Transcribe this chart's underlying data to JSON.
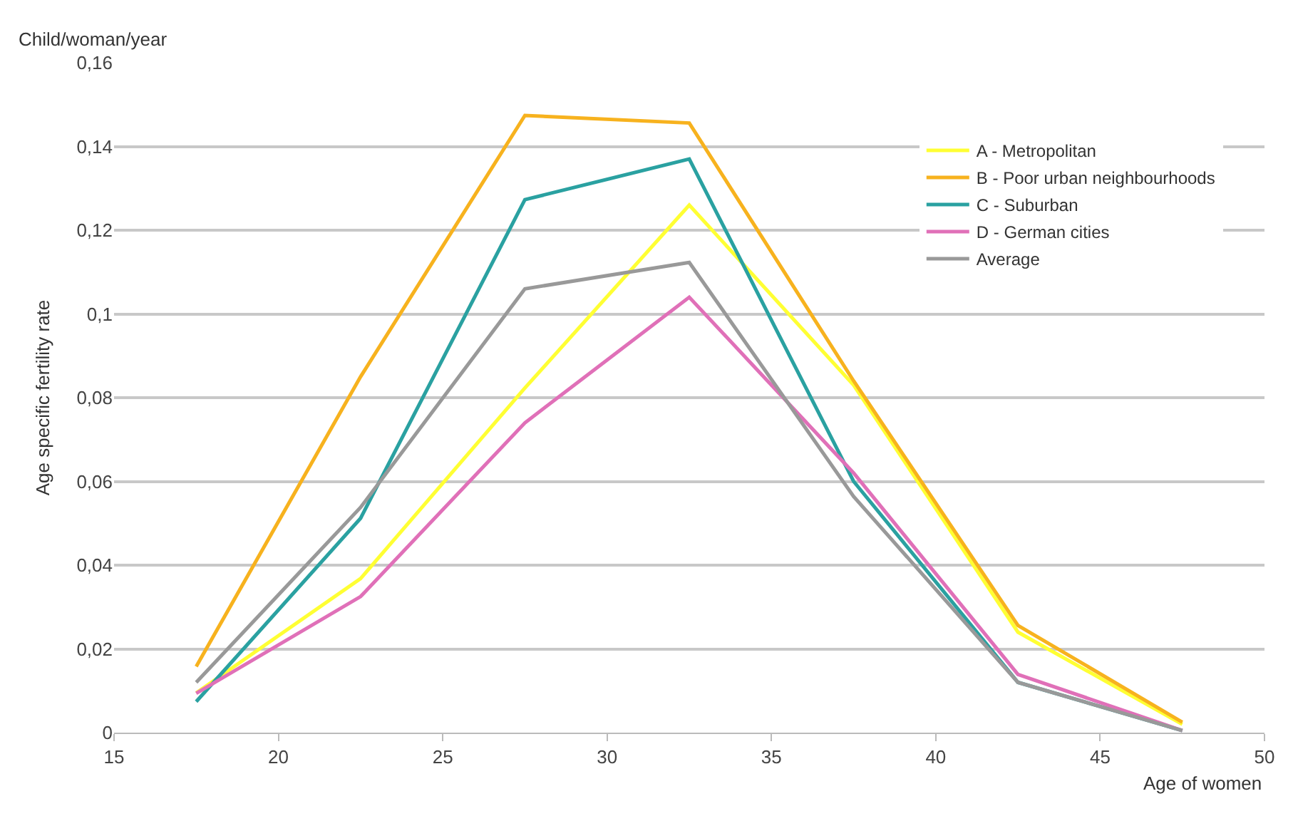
{
  "chart_data": {
    "type": "line",
    "ylabel": "Age specific fertility rate",
    "xlabel": "Age of women",
    "annotations": [
      "Child/woman/year"
    ],
    "x": [
      17.5,
      22.5,
      27.5,
      32.5,
      37.5,
      42.5,
      47.5
    ],
    "series": [
      {
        "name": "A - Metropolitan",
        "color": "#ffff33",
        "values": [
          0.0095,
          0.0368,
          0.0823,
          0.126,
          0.083,
          0.024,
          0.002
        ]
      },
      {
        "name": "B - Poor urban neighbourhoods",
        "color": "#f7b21e",
        "values": [
          0.0158,
          0.085,
          0.1474,
          0.1456,
          0.084,
          0.0256,
          0.0025
        ]
      },
      {
        "name": "C - Suburban",
        "color": "#2aa1a1",
        "values": [
          0.0074,
          0.0512,
          0.1273,
          0.137,
          0.06,
          0.012,
          0.0005
        ]
      },
      {
        "name": "D - German cities",
        "color": "#e070b8",
        "values": [
          0.0094,
          0.0325,
          0.074,
          0.104,
          0.062,
          0.0139,
          0.0005
        ]
      },
      {
        "name": "Average",
        "color": "#999999",
        "values": [
          0.012,
          0.0538,
          0.106,
          0.1123,
          0.0564,
          0.012,
          0.0005
        ]
      }
    ],
    "xlim": [
      15,
      50
    ],
    "xticks": [
      15,
      20,
      25,
      30,
      35,
      40,
      45,
      50
    ],
    "ylim": [
      0,
      0.16
    ],
    "yticks": [
      {
        "value": 0,
        "label": "0"
      },
      {
        "value": 0.02,
        "label": "0,02"
      },
      {
        "value": 0.04,
        "label": "0,04"
      },
      {
        "value": 0.06,
        "label": "0,06"
      },
      {
        "value": 0.08,
        "label": "0,08"
      },
      {
        "value": 0.1,
        "label": "0,1"
      },
      {
        "value": 0.12,
        "label": "0,12"
      },
      {
        "value": 0.14,
        "label": "0,14"
      },
      {
        "value": 0.16,
        "label": "0,16"
      }
    ],
    "grid": "y",
    "legend": "top right",
    "marker": "none",
    "line_style": "solid"
  }
}
